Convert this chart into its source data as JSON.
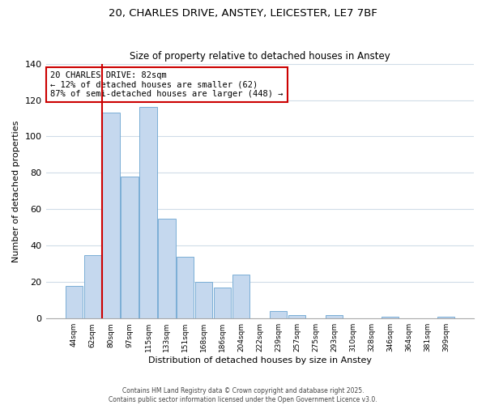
{
  "title": "20, CHARLES DRIVE, ANSTEY, LEICESTER, LE7 7BF",
  "subtitle": "Size of property relative to detached houses in Anstey",
  "xlabel": "Distribution of detached houses by size in Anstey",
  "ylabel": "Number of detached properties",
  "bar_labels": [
    "44sqm",
    "62sqm",
    "80sqm",
    "97sqm",
    "115sqm",
    "133sqm",
    "151sqm",
    "168sqm",
    "186sqm",
    "204sqm",
    "222sqm",
    "239sqm",
    "257sqm",
    "275sqm",
    "293sqm",
    "310sqm",
    "328sqm",
    "346sqm",
    "364sqm",
    "381sqm",
    "399sqm"
  ],
  "bar_values": [
    18,
    35,
    113,
    78,
    116,
    55,
    34,
    20,
    17,
    24,
    0,
    4,
    2,
    0,
    2,
    0,
    0,
    1,
    0,
    0,
    1
  ],
  "bar_color": "#c5d8ee",
  "bar_edge_color": "#7aaed6",
  "marker_color": "#cc0000",
  "ylim": [
    0,
    140
  ],
  "yticks": [
    0,
    20,
    40,
    60,
    80,
    100,
    120,
    140
  ],
  "annotation_line1": "20 CHARLES DRIVE: 82sqm",
  "annotation_line2": "← 12% of detached houses are smaller (62)",
  "annotation_line3": "87% of semi-detached houses are larger (448) →",
  "footer1": "Contains HM Land Registry data © Crown copyright and database right 2025.",
  "footer2": "Contains public sector information licensed under the Open Government Licence v3.0.",
  "background_color": "#ffffff",
  "grid_color": "#d0dce8"
}
